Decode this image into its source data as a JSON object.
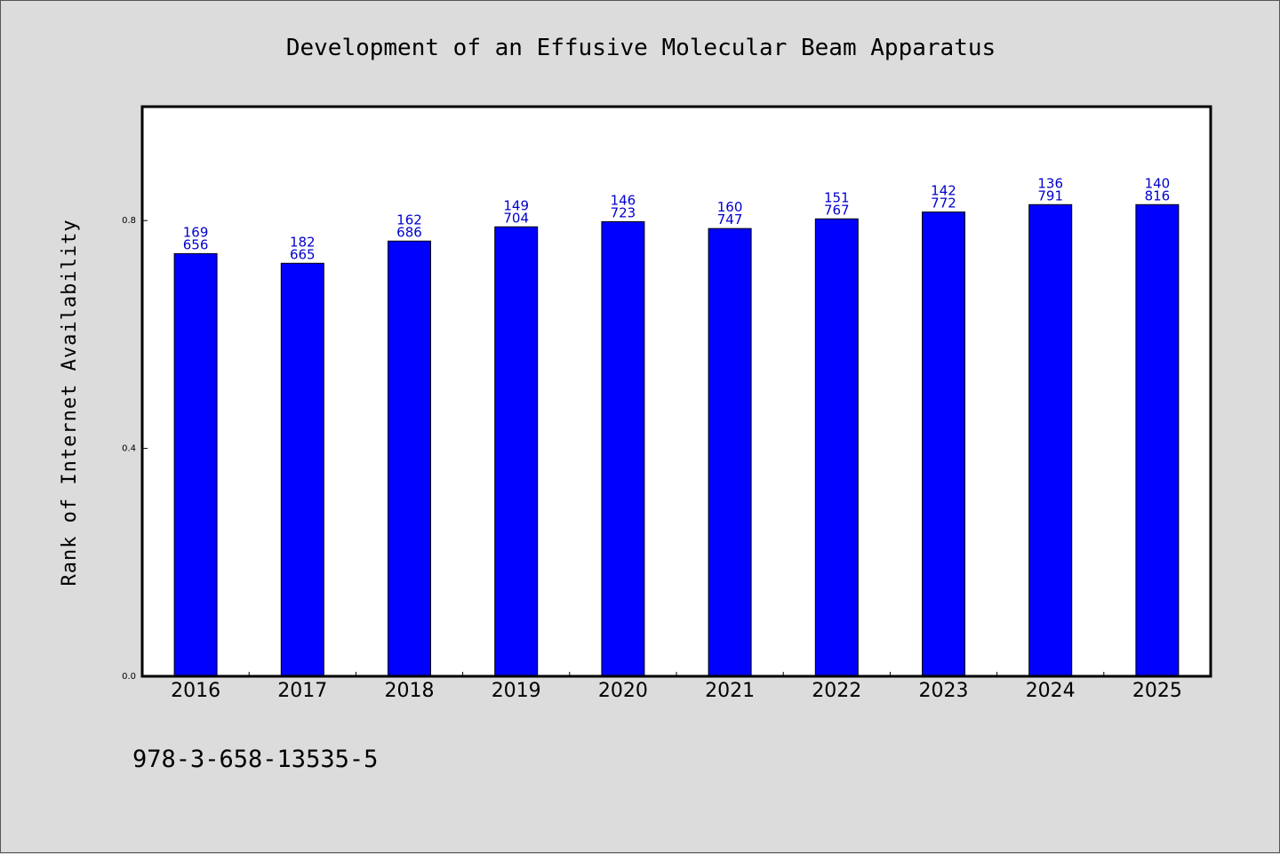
{
  "chart_data": {
    "type": "bar",
    "title": "Development of an Effusive Molecular Beam Apparatus",
    "xlabel": "",
    "ylabel": "Rank of Internet Availability",
    "categories": [
      "2016",
      "2017",
      "2018",
      "2019",
      "2020",
      "2021",
      "2022",
      "2023",
      "2024",
      "2025"
    ],
    "values": [
      0.742,
      0.725,
      0.764,
      0.789,
      0.798,
      0.786,
      0.803,
      0.815,
      0.828,
      0.828
    ],
    "data_labels": [
      [
        "169",
        "656"
      ],
      [
        "182",
        "665"
      ],
      [
        "162",
        "686"
      ],
      [
        "149",
        "704"
      ],
      [
        "146",
        "723"
      ],
      [
        "160",
        "747"
      ],
      [
        "151",
        "767"
      ],
      [
        "142",
        "772"
      ],
      [
        "136",
        "791"
      ],
      [
        "140",
        "816"
      ]
    ],
    "ylim": [
      0,
      1.0
    ],
    "yticks": [
      0.0,
      0.4,
      0.8
    ],
    "ytick_labels": [
      "0.0",
      "0.4",
      "0.8"
    ],
    "grid": false,
    "bar_color": "#0000ff",
    "label_color": "#0000cc",
    "background_color": "#dcdcdc",
    "plot_background": "#ffffff"
  },
  "footer": {
    "isbn": "978-3-658-13535-5"
  }
}
